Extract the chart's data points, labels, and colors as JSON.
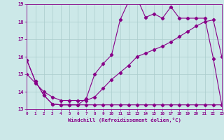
{
  "xlabel": "Windchill (Refroidissement éolien,°C)",
  "background_color": "#cce8e8",
  "grid_color": "#aacccc",
  "line_color": "#880088",
  "ylim": [
    13,
    19
  ],
  "xlim": [
    0,
    23
  ],
  "yticks": [
    13,
    14,
    15,
    16,
    17,
    18,
    19
  ],
  "xticks": [
    0,
    1,
    2,
    3,
    4,
    5,
    6,
    7,
    8,
    9,
    10,
    11,
    12,
    13,
    14,
    15,
    16,
    17,
    18,
    19,
    20,
    21,
    22,
    23
  ],
  "line1_x": [
    0,
    1,
    2,
    3,
    4,
    5,
    6,
    7,
    8,
    9,
    10,
    11,
    12,
    13,
    14,
    15,
    16,
    17,
    18,
    19,
    20,
    21,
    22,
    23
  ],
  "line1_y": [
    15.8,
    14.6,
    13.8,
    13.3,
    13.25,
    13.25,
    13.25,
    13.25,
    13.25,
    13.25,
    13.25,
    13.25,
    13.25,
    13.25,
    13.25,
    13.25,
    13.25,
    13.25,
    13.25,
    13.25,
    13.25,
    13.25,
    13.25,
    13.25
  ],
  "line2_x": [
    0,
    1,
    2,
    3,
    4,
    5,
    6,
    7,
    8,
    9,
    10,
    11,
    12,
    13,
    14,
    15,
    16,
    17,
    18,
    19,
    20,
    21,
    22,
    23
  ],
  "line2_y": [
    15.8,
    14.6,
    13.8,
    13.3,
    13.25,
    13.25,
    13.25,
    13.6,
    15.0,
    15.6,
    16.1,
    18.1,
    19.15,
    19.35,
    18.25,
    18.45,
    18.2,
    18.85,
    18.2,
    18.2,
    18.2,
    18.2,
    15.9,
    13.25
  ],
  "line3_x": [
    0,
    1,
    2,
    3,
    4,
    5,
    6,
    7,
    8,
    9,
    10,
    11,
    12,
    13,
    14,
    15,
    16,
    17,
    18,
    19,
    20,
    21,
    22,
    23
  ],
  "line3_y": [
    15.0,
    14.5,
    14.0,
    13.7,
    13.5,
    13.5,
    13.5,
    13.5,
    13.7,
    14.2,
    14.7,
    15.1,
    15.5,
    16.0,
    16.2,
    16.4,
    16.6,
    16.85,
    17.15,
    17.45,
    17.75,
    18.0,
    18.1,
    16.0
  ]
}
